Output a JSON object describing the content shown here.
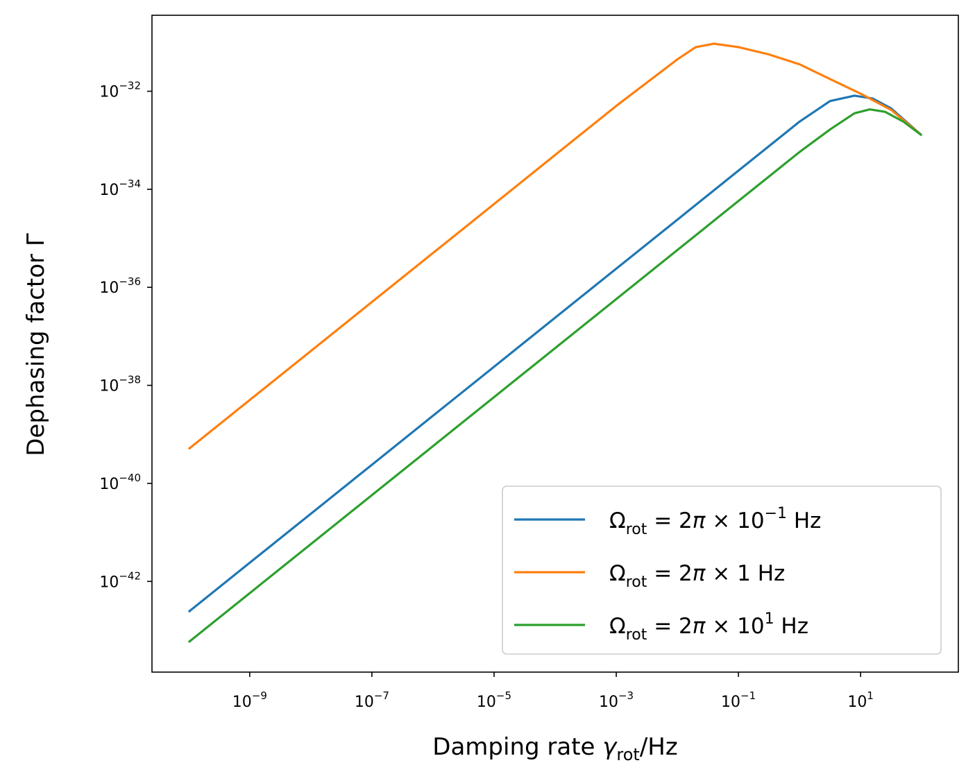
{
  "chart_data": {
    "type": "line",
    "title": "",
    "xlabel": "Damping rate γ_rot/Hz",
    "xlabel_parts": {
      "main": "Damping rate ",
      "symbol": "γ",
      "sub": "rot",
      "unit": "/Hz"
    },
    "ylabel": "Dephasing factor Γ",
    "xscale": "log",
    "yscale": "log",
    "x_exponent_range": [
      -10.6,
      2.6
    ],
    "y_exponent_range": [
      -43.85,
      -30.45
    ],
    "x_ticks": [
      {
        "base": "10",
        "exp": "−9",
        "value_exp": -9
      },
      {
        "base": "10",
        "exp": "−7",
        "value_exp": -7
      },
      {
        "base": "10",
        "exp": "−5",
        "value_exp": -5
      },
      {
        "base": "10",
        "exp": "−3",
        "value_exp": -3
      },
      {
        "base": "10",
        "exp": "−1",
        "value_exp": -1
      },
      {
        "base": "10",
        "exp": "1",
        "value_exp": 1
      }
    ],
    "y_ticks": [
      {
        "base": "10",
        "exp": "−42",
        "value_exp": -42
      },
      {
        "base": "10",
        "exp": "−40",
        "value_exp": -40
      },
      {
        "base": "10",
        "exp": "−38",
        "value_exp": -38
      },
      {
        "base": "10",
        "exp": "−36",
        "value_exp": -36
      },
      {
        "base": "10",
        "exp": "−34",
        "value_exp": -34
      },
      {
        "base": "10",
        "exp": "−32",
        "value_exp": -32
      }
    ],
    "legend_position": "lower right",
    "series": [
      {
        "name": "Ω_rot = 2π × 10^−1 Hz",
        "label_parts": {
          "pre": "Ω",
          "sub": "rot",
          "mid": " = 2",
          "pi": "π",
          "post": " × 10",
          "sup": "−1",
          "tail": " Hz"
        },
        "color": "#1f77b4",
        "log10_x": [
          -10,
          -9,
          -8,
          -7,
          -6,
          -5,
          -4,
          -3,
          -2,
          -1,
          0,
          0.5,
          0.9,
          1.2,
          1.5,
          2
        ],
        "log10_y": [
          -42.62,
          -41.62,
          -40.62,
          -39.62,
          -38.62,
          -37.62,
          -36.62,
          -35.62,
          -34.62,
          -33.62,
          -32.62,
          -32.2,
          -32.09,
          -32.15,
          -32.35,
          -32.9
        ]
      },
      {
        "name": "Ω_rot = 2π × 1 Hz",
        "label_parts": {
          "pre": "Ω",
          "sub": "rot",
          "mid": " = 2",
          "pi": "π",
          "post": " × 1",
          "sup": "",
          "tail": " Hz"
        },
        "color": "#ff7f0e",
        "log10_x": [
          -10,
          -9,
          -8,
          -7,
          -6,
          -5,
          -4,
          -3,
          -2,
          -1.7,
          -1.4,
          -1,
          -0.5,
          0,
          0.5,
          1,
          1.5,
          2
        ],
        "log10_y": [
          -39.3,
          -38.3,
          -37.3,
          -36.3,
          -35.3,
          -34.3,
          -33.3,
          -32.3,
          -31.35,
          -31.1,
          -31.03,
          -31.1,
          -31.25,
          -31.45,
          -31.75,
          -32.05,
          -32.38,
          -32.9
        ]
      },
      {
        "name": "Ω_rot = 2π × 10^1 Hz",
        "label_parts": {
          "pre": "Ω",
          "sub": "rot",
          "mid": " = 2",
          "pi": "π",
          "post": " × 10",
          "sup": "1",
          "tail": " Hz"
        },
        "color": "#2ca02c",
        "log10_x": [
          -10,
          -9,
          -8,
          -7,
          -6,
          -5,
          -4,
          -3,
          -2,
          -1,
          0,
          0.5,
          0.9,
          1.15,
          1.4,
          1.7,
          2
        ],
        "log10_y": [
          -43.24,
          -42.24,
          -41.24,
          -40.24,
          -39.24,
          -38.24,
          -37.24,
          -36.24,
          -35.24,
          -34.24,
          -33.24,
          -32.78,
          -32.45,
          -32.37,
          -32.42,
          -32.62,
          -32.9
        ]
      }
    ]
  }
}
